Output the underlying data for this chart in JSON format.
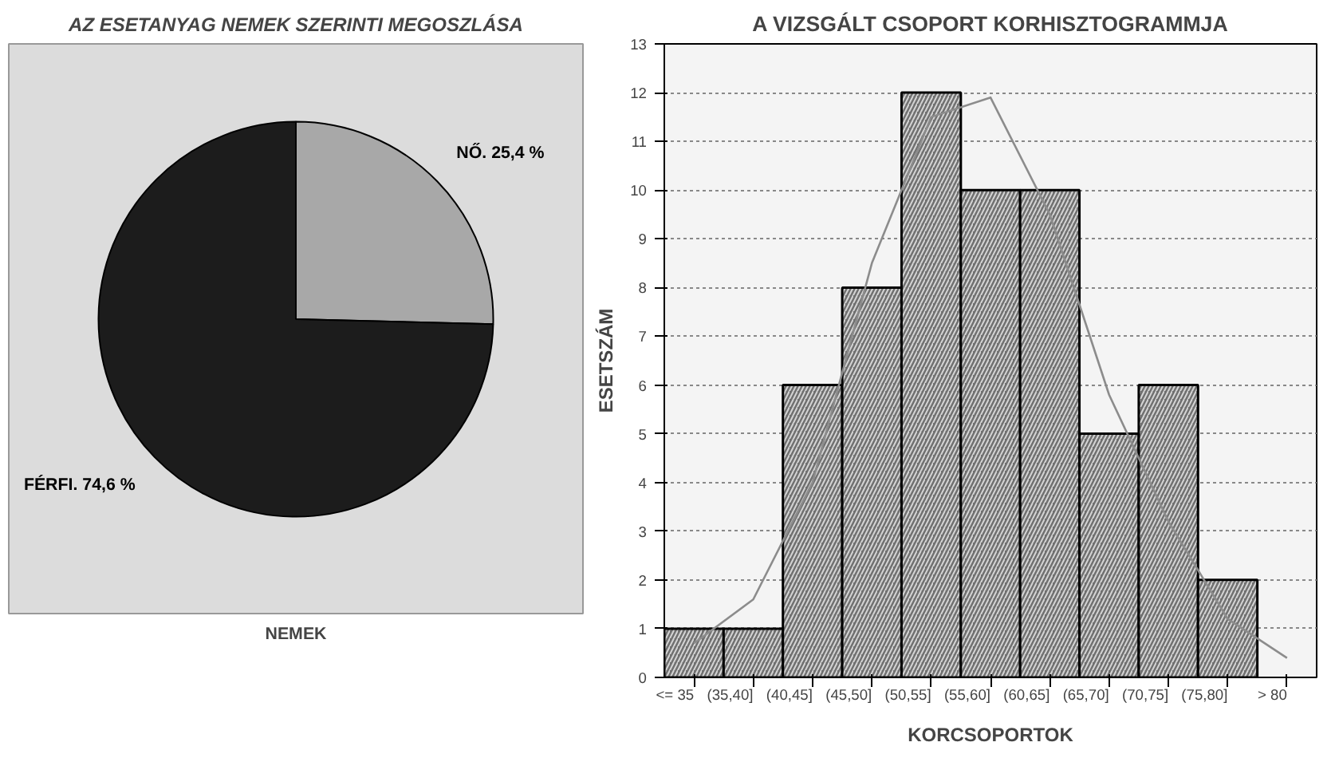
{
  "chart_data": [
    {
      "type": "pie",
      "title": "AZ ESETANYAG NEMEK SZERINTI MEGOSZLÁSA",
      "xlabel": "NEMEK",
      "categories": [
        "NŐ. 25,4 %",
        "FÉRFI. 74,6 %"
      ],
      "values": [
        25.4,
        74.6
      ],
      "colors": [
        "#a8a8a8",
        "#1c1c1c"
      ]
    },
    {
      "type": "bar",
      "title": "A VIZSGÁLT CSOPORT KORHISZTOGRAMMJA",
      "xlabel": "KORCSOPORTOK",
      "ylabel": "ESETSZÁM",
      "categories": [
        "<= 35",
        "(35,40]",
        "(40,45]",
        "(45,50]",
        "(50,55]",
        "(55,60]",
        "(60,65]",
        "(65,70]",
        "(70,75]",
        "(75,80]",
        "> 80"
      ],
      "series": [
        {
          "type": "bar",
          "color": "#707070",
          "values": [
            1,
            1,
            6,
            8,
            12,
            10,
            10,
            5,
            6,
            2,
            0
          ]
        },
        {
          "type": "line",
          "color": "#8c8c8c",
          "values": [
            0.7,
            1.6,
            4,
            8.5,
            11.5,
            11.9,
            9.5,
            5.8,
            3.2,
            1.2,
            0.4
          ]
        }
      ],
      "ylim": [
        0,
        13
      ],
      "yticks": [
        0,
        1,
        2,
        3,
        4,
        5,
        6,
        7,
        8,
        9,
        10,
        11,
        12,
        13
      ],
      "grid": "y"
    }
  ]
}
